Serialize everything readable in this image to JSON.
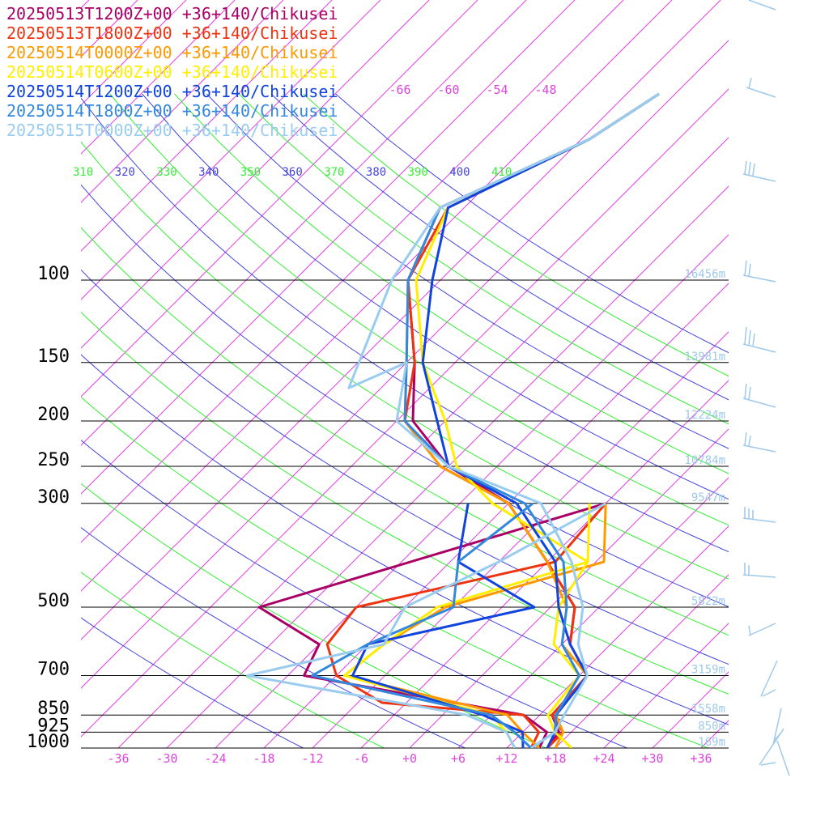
{
  "chart_data": {
    "type": "line",
    "subtype": "skew-T log-P sounding",
    "legend_position": "top-left",
    "series": [
      {
        "name": "20250513T1200Z+00 +36+140/Chikusei",
        "color": "#aa0066",
        "temperature": [
          [
            1000,
            17
          ],
          [
            925,
            16.5
          ],
          [
            850,
            13.5
          ],
          [
            700,
            13
          ],
          [
            600,
            7
          ],
          [
            500,
            3
          ],
          [
            400,
            -6
          ],
          [
            300,
            -18
          ],
          [
            250,
            -30
          ],
          [
            200,
            -40
          ],
          [
            150,
            -47
          ],
          [
            100,
            -58
          ],
          [
            70,
            -63
          ],
          [
            50,
            -53
          ],
          [
            40,
            -50
          ]
        ],
        "dewpoint": [
          [
            1000,
            16
          ],
          [
            925,
            15
          ],
          [
            850,
            10
          ],
          [
            700,
            -22
          ],
          [
            600,
            -24
          ],
          [
            500,
            -36
          ],
          [
            300,
            -6
          ]
        ]
      },
      {
        "name": "20250513T1800Z+00 +36+140/Chikusei",
        "color": "#ee3311",
        "temperature": [
          [
            1000,
            17
          ],
          [
            925,
            17
          ],
          [
            850,
            13.5
          ],
          [
            700,
            13
          ],
          [
            600,
            7
          ],
          [
            500,
            3
          ],
          [
            400,
            -6
          ],
          [
            300,
            -18
          ],
          [
            250,
            -31
          ],
          [
            200,
            -41
          ],
          [
            150,
            -47
          ],
          [
            100,
            -58
          ],
          [
            70,
            -62
          ],
          [
            50,
            -53
          ],
          [
            40,
            -50
          ]
        ],
        "dewpoint": [
          [
            1000,
            15
          ],
          [
            925,
            14
          ],
          [
            850,
            10
          ],
          [
            800,
            -9
          ],
          [
            700,
            -18
          ],
          [
            600,
            -23
          ],
          [
            500,
            -24
          ],
          [
            400,
            -5
          ],
          [
            300,
            -6
          ]
        ]
      },
      {
        "name": "20250514T0000Z+00 +36+140/Chikusei",
        "color": "#ff9900",
        "temperature": [
          [
            1000,
            18
          ],
          [
            925,
            17
          ],
          [
            850,
            14
          ],
          [
            700,
            13
          ],
          [
            600,
            6
          ],
          [
            500,
            2
          ],
          [
            400,
            -6
          ],
          [
            300,
            -18
          ],
          [
            250,
            -31
          ],
          [
            200,
            -41
          ],
          [
            150,
            -48
          ],
          [
            100,
            -58
          ],
          [
            70,
            -63
          ],
          [
            50,
            -53
          ],
          [
            40,
            -50
          ]
        ],
        "dewpoint": [
          [
            1000,
            16
          ],
          [
            925,
            12
          ],
          [
            850,
            8
          ],
          [
            700,
            -17
          ],
          [
            600,
            -16
          ],
          [
            500,
            -13
          ],
          [
            400,
            1
          ],
          [
            300,
            -6
          ]
        ]
      },
      {
        "name": "20250514T0600Z+00 +36+140/Chikusei",
        "color": "#ffee00",
        "temperature": [
          [
            1000,
            20
          ],
          [
            925,
            16
          ],
          [
            850,
            13
          ],
          [
            700,
            12
          ],
          [
            600,
            5
          ],
          [
            500,
            1
          ],
          [
            400,
            -1
          ],
          [
            300,
            -20
          ],
          [
            250,
            -29
          ],
          [
            200,
            -36
          ],
          [
            150,
            -46
          ],
          [
            100,
            -57
          ],
          [
            70,
            -62
          ],
          [
            50,
            -53
          ],
          [
            40,
            -50
          ]
        ],
        "dewpoint": [
          [
            1000,
            13
          ],
          [
            925,
            10
          ],
          [
            850,
            6
          ],
          [
            700,
            -17
          ],
          [
            600,
            -16
          ],
          [
            500,
            -14
          ],
          [
            400,
            -1
          ],
          [
            300,
            -8
          ]
        ]
      },
      {
        "name": "20250514T1200Z+00 +36+140/Chikusei",
        "color": "#1144dd",
        "temperature": [
          [
            1000,
            17
          ],
          [
            925,
            16
          ],
          [
            850,
            14
          ],
          [
            700,
            13
          ],
          [
            600,
            7
          ],
          [
            500,
            1
          ],
          [
            400,
            -5
          ],
          [
            300,
            -17
          ],
          [
            250,
            -30
          ],
          [
            200,
            -37
          ],
          [
            150,
            -46
          ],
          [
            100,
            -55
          ],
          [
            70,
            -62
          ],
          [
            50,
            -53
          ],
          [
            40,
            -50
          ]
        ],
        "dewpoint": [
          [
            1000,
            14
          ],
          [
            925,
            12
          ],
          [
            850,
            5
          ],
          [
            700,
            -16
          ],
          [
            600,
            -18
          ],
          [
            500,
            -2
          ],
          [
            400,
            -17
          ],
          [
            300,
            -23
          ]
        ]
      },
      {
        "name": "20250514T1800Z+00 +36+140/Chikusei",
        "color": "#3388dd",
        "temperature": [
          [
            1000,
            15
          ],
          [
            925,
            16
          ],
          [
            850,
            14
          ],
          [
            700,
            12
          ],
          [
            600,
            6
          ],
          [
            500,
            2
          ],
          [
            400,
            -4
          ],
          [
            300,
            -16
          ],
          [
            250,
            -30
          ],
          [
            200,
            -41
          ],
          [
            150,
            -48
          ],
          [
            100,
            -58
          ],
          [
            70,
            -63
          ],
          [
            50,
            -53
          ],
          [
            40,
            -50
          ]
        ],
        "dewpoint": [
          [
            1000,
            15
          ],
          [
            925,
            11
          ],
          [
            850,
            6
          ],
          [
            700,
            -21
          ],
          [
            600,
            -18
          ],
          [
            500,
            -12
          ],
          [
            400,
            -17
          ],
          [
            300,
            -15
          ]
        ]
      },
      {
        "name": "20250515T0000Z+00 +36+140/Chikusei",
        "color": "#99ccee",
        "temperature": [
          [
            1000,
            15
          ],
          [
            925,
            16
          ],
          [
            850,
            15
          ],
          [
            700,
            13
          ],
          [
            600,
            8
          ],
          [
            500,
            4
          ],
          [
            400,
            -3
          ],
          [
            300,
            -14
          ],
          [
            250,
            -30
          ],
          [
            200,
            -42
          ],
          [
            150,
            -48
          ],
          [
            170,
            -52
          ],
          [
            100,
            -60
          ],
          [
            70,
            -63
          ],
          [
            50,
            -53
          ],
          [
            40,
            -50
          ]
        ],
        "dewpoint": [
          [
            1000,
            13
          ],
          [
            925,
            10
          ],
          [
            850,
            3
          ],
          [
            700,
            -29
          ],
          [
            600,
            -16
          ],
          [
            500,
            -18
          ],
          [
            400,
            -12
          ],
          [
            300,
            -6
          ]
        ]
      }
    ],
    "pressure_ticks": [
      {
        "p": 100,
        "label": "100",
        "height": "16456m"
      },
      {
        "p": 150,
        "label": "150",
        "height": "13981m"
      },
      {
        "p": 200,
        "label": "200",
        "height": "12224m"
      },
      {
        "p": 250,
        "label": "250",
        "height": "10784m"
      },
      {
        "p": 300,
        "label": "300",
        "height": "9547m"
      },
      {
        "p": 500,
        "label": "500",
        "height": "5822m"
      },
      {
        "p": 700,
        "label": "700",
        "height": "3159m"
      },
      {
        "p": 850,
        "label": "850",
        "height": "1558m"
      },
      {
        "p": 925,
        "label": "925",
        "height": "850m"
      },
      {
        "p": 1000,
        "label": "1000",
        "height": "169m"
      }
    ],
    "temperature_ticks": [
      "-36",
      "-30",
      "-24",
      "-18",
      "-12",
      "-6",
      "+0",
      "+6",
      "+12",
      "+18",
      "+24",
      "+30",
      "+36"
    ],
    "upper_temperature_ticks": [
      "-66",
      "-60",
      "-54",
      "-48"
    ],
    "theta_ticks": [
      {
        "value": "310",
        "color": "#33ee33"
      },
      {
        "value": "320",
        "color": "#4444dd"
      },
      {
        "value": "330",
        "color": "#33ee33"
      },
      {
        "value": "340",
        "color": "#4444dd"
      },
      {
        "value": "350",
        "color": "#33ee33"
      },
      {
        "value": "360",
        "color": "#4444dd"
      },
      {
        "value": "370",
        "color": "#33ee33"
      },
      {
        "value": "380",
        "color": "#4444dd"
      },
      {
        "value": "390",
        "color": "#33ee33"
      },
      {
        "value": "400",
        "color": "#4444dd"
      },
      {
        "value": "410",
        "color": "#33ee33"
      }
    ],
    "wind_barb_color": "#9ec9ea",
    "colors": {
      "isotherm": "#dd44dd",
      "adiabat_green": "#33ee33",
      "adiabat_blue": "#4444dd",
      "isobar": "#000000"
    }
  }
}
